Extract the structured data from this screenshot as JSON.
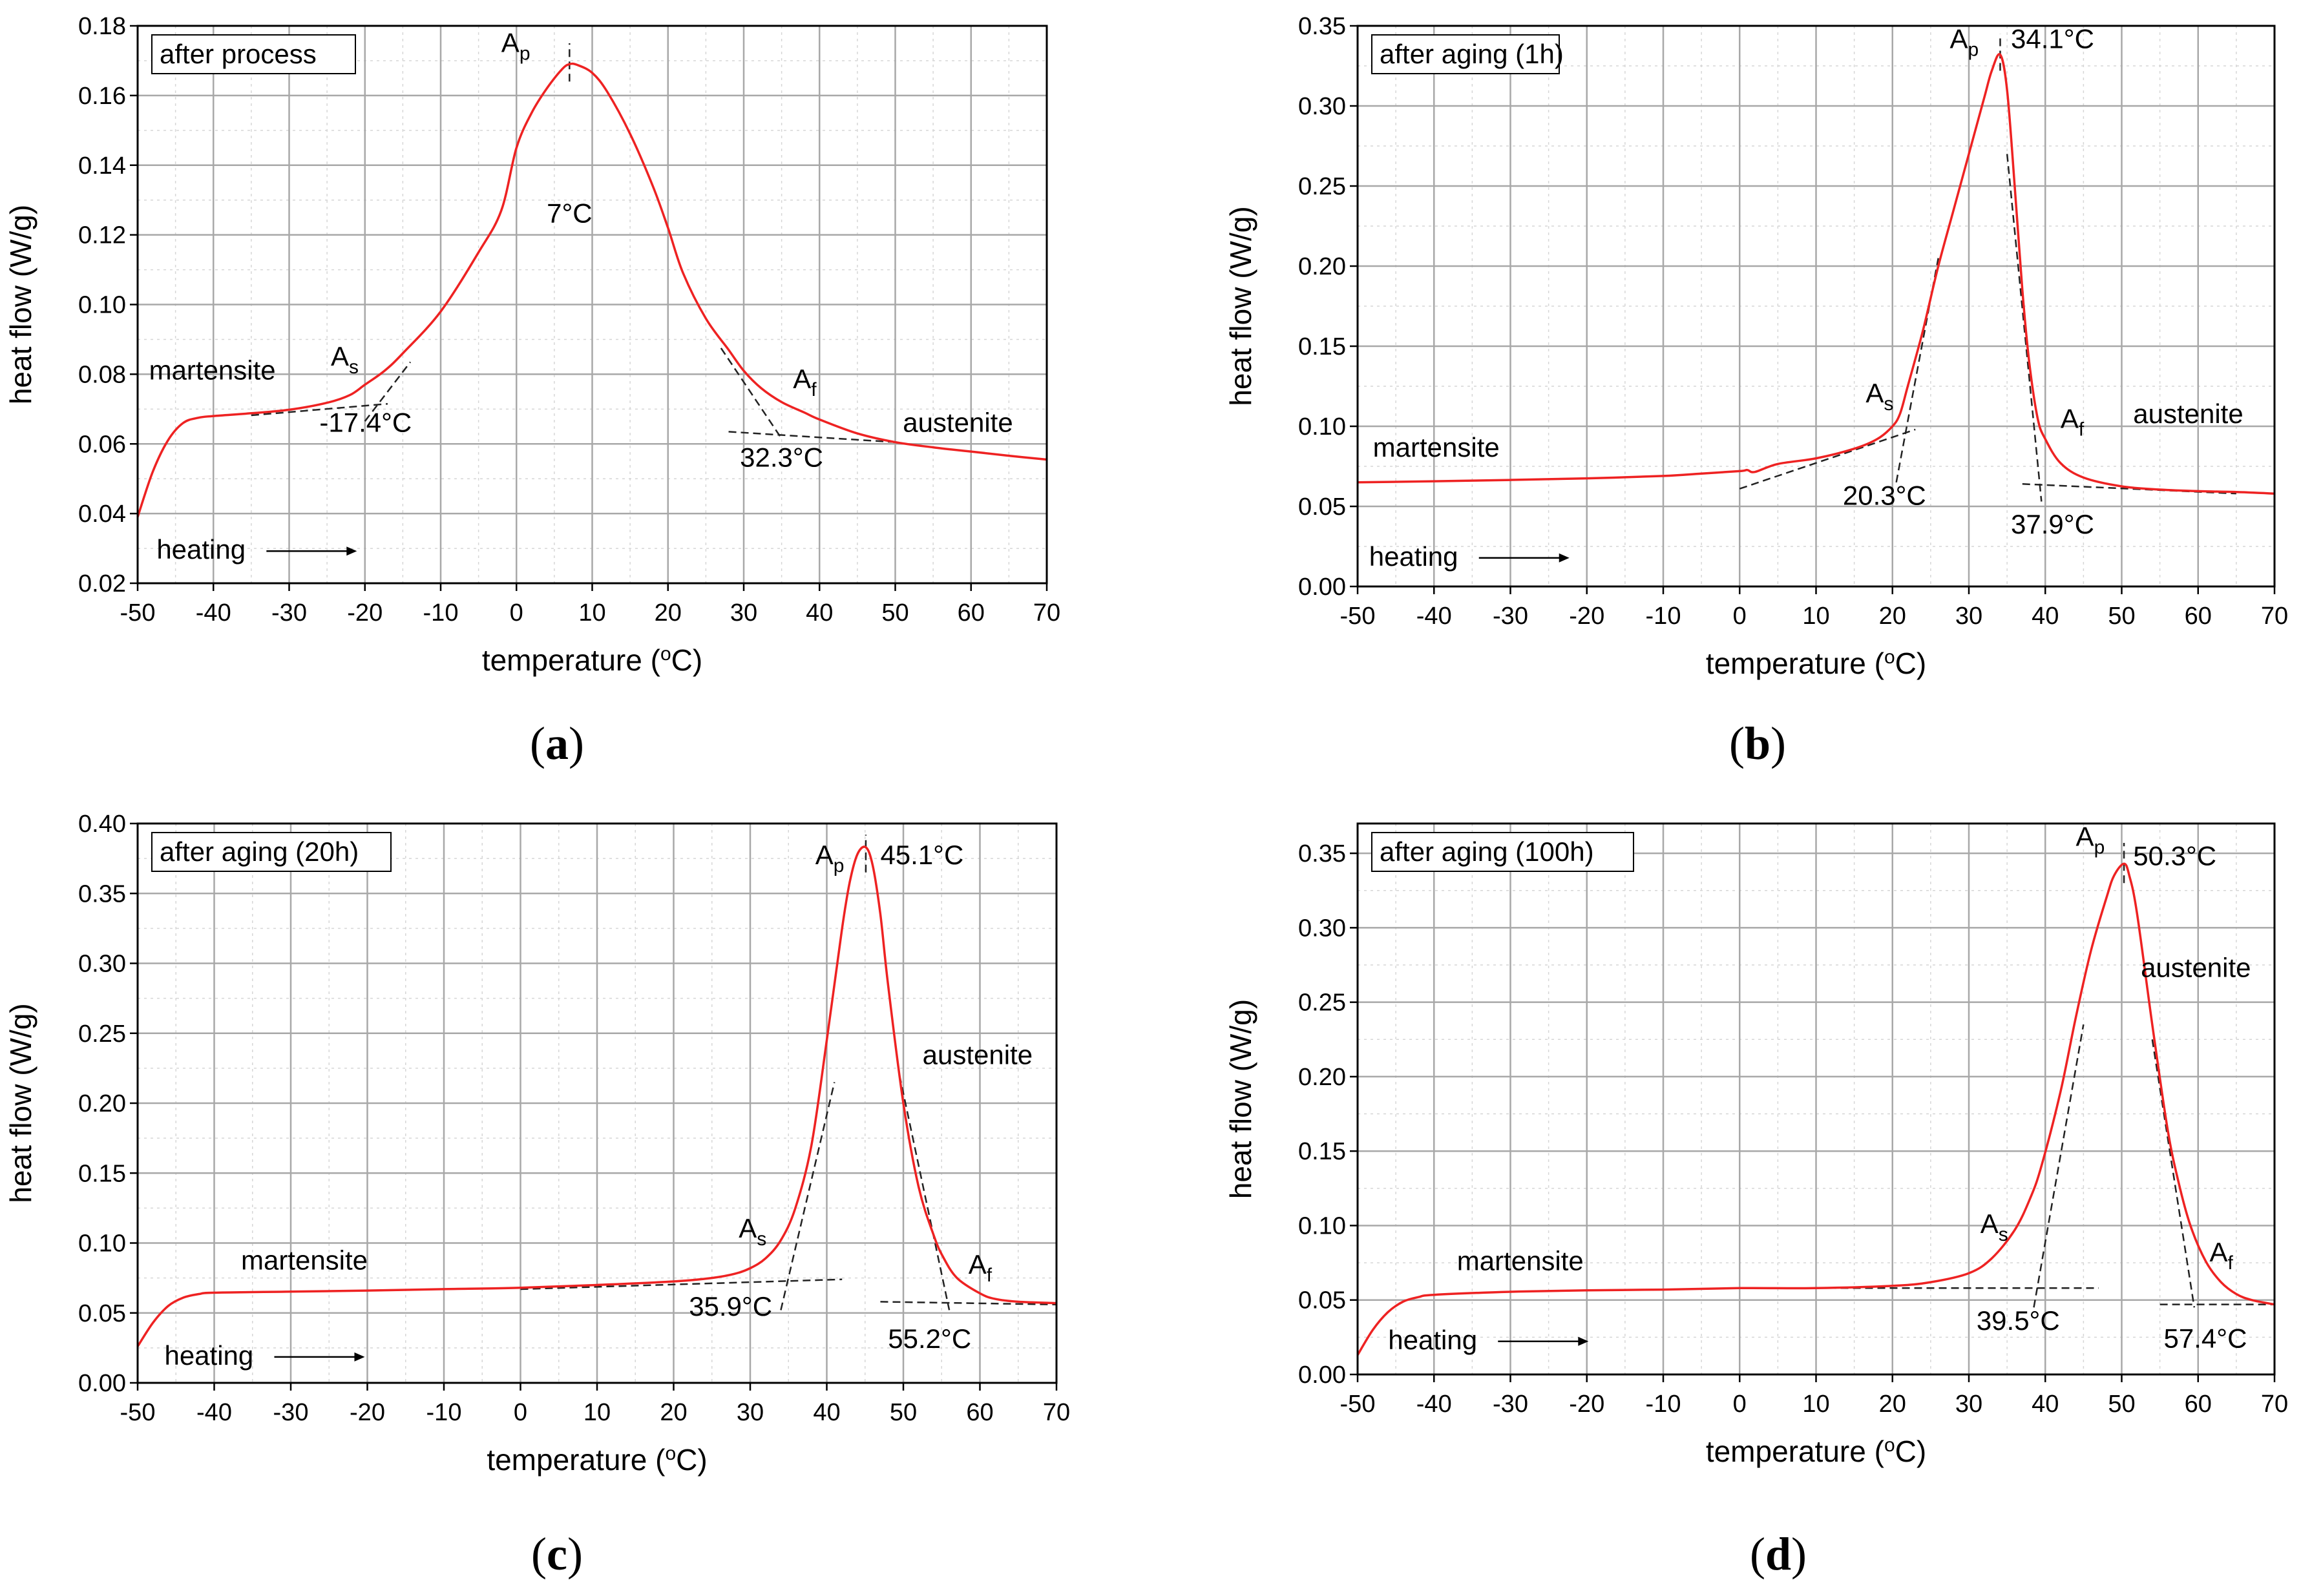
{
  "figure": {
    "panel_letters": [
      "a",
      "b",
      "c",
      "d"
    ]
  },
  "chart_data": [
    {
      "type": "line",
      "panel": "a",
      "title": "after process",
      "xlabel": "temperature",
      "xlabel_unit": "C",
      "ylabel": "heat flow (W/g)",
      "xlim": [
        -50,
        70
      ],
      "ylim": [
        0.02,
        0.18
      ],
      "xticks": [
        -50,
        -40,
        -30,
        -20,
        -10,
        0,
        10,
        20,
        30,
        40,
        50,
        60,
        70
      ],
      "yticks": [
        0.02,
        0.04,
        0.06,
        0.08,
        0.1,
        0.12,
        0.14,
        0.16,
        0.18
      ],
      "ytick_decimals": 2,
      "series": [
        {
          "name": "heat flow",
          "color": "#ee2222",
          "x": [
            -50,
            -48,
            -46,
            -44,
            -42,
            -40,
            -35,
            -30,
            -25,
            -22,
            -20,
            -17.4,
            -15,
            -10,
            -5,
            -2,
            0,
            2,
            4,
            6,
            7,
            8,
            10,
            12,
            15,
            18,
            20,
            22,
            25,
            28,
            30,
            32.3,
            35,
            38,
            40,
            45,
            50,
            55,
            60,
            65,
            70
          ],
          "y": [
            0.039,
            0.052,
            0.061,
            0.066,
            0.0675,
            0.068,
            0.0688,
            0.0698,
            0.0718,
            0.074,
            0.077,
            0.081,
            0.086,
            0.098,
            0.115,
            0.127,
            0.145,
            0.155,
            0.162,
            0.1675,
            0.169,
            0.1688,
            0.1665,
            0.161,
            0.149,
            0.134,
            0.122,
            0.109,
            0.096,
            0.087,
            0.081,
            0.076,
            0.072,
            0.069,
            0.067,
            0.063,
            0.0605,
            0.059,
            0.0578,
            0.0566,
            0.0555
          ]
        }
      ],
      "tangents": [
        {
          "x": [
            -35,
            -17
          ],
          "y": [
            0.0682,
            0.0715
          ]
        },
        {
          "x": [
            -20,
            -14
          ],
          "y": [
            0.0665,
            0.0835
          ]
        },
        {
          "x": [
            27,
            35
          ],
          "y": [
            0.0875,
            0.0615
          ]
        },
        {
          "x": [
            28,
            50
          ],
          "y": [
            0.0635,
            0.0605
          ]
        },
        {
          "x": [
            7,
            7
          ],
          "y": [
            0.164,
            0.175
          ]
        }
      ],
      "annotations": [
        {
          "text": "martensite",
          "x": -48.5,
          "y": 0.0785
        },
        {
          "text": "austenite",
          "x": 51,
          "y": 0.0635
        },
        {
          "text": "heating",
          "x": -47.5,
          "y": 0.027
        },
        {
          "text": "-17.4°C",
          "x": -26,
          "y": 0.0635
        },
        {
          "text": "32.3°C",
          "x": 29.5,
          "y": 0.0535
        },
        {
          "text": "7°C",
          "x": 4,
          "y": 0.1235
        },
        {
          "text": "A",
          "sub": "s",
          "x": -24.5,
          "y": 0.0825
        },
        {
          "text": "A",
          "sub": "p",
          "x": -2,
          "y": 0.1725
        },
        {
          "text": "A",
          "sub": "f",
          "x": 36.5,
          "y": 0.076
        }
      ]
    },
    {
      "type": "line",
      "panel": "b",
      "title": "after aging (1h)",
      "xlabel": "temperature",
      "xlabel_unit": "C",
      "ylabel": "heat flow (W/g)",
      "xlim": [
        -50,
        70
      ],
      "ylim": [
        0,
        0.35
      ],
      "xticks": [
        -50,
        -40,
        -30,
        -20,
        -10,
        0,
        10,
        20,
        30,
        40,
        50,
        60,
        70
      ],
      "yticks": [
        0.0,
        0.05,
        0.1,
        0.15,
        0.2,
        0.25,
        0.3,
        0.35
      ],
      "ytick_decimals": 2,
      "series": [
        {
          "name": "heat flow",
          "color": "#ee2222",
          "x": [
            -50,
            -40,
            -30,
            -20,
            -10,
            -5,
            0,
            1,
            2,
            5,
            10,
            15,
            18,
            20,
            21,
            22,
            24,
            26,
            28,
            30,
            32,
            33,
            34.1,
            35,
            36,
            37,
            37.9,
            39,
            40,
            42,
            45,
            50,
            55,
            60,
            65,
            70
          ],
          "y": [
            0.065,
            0.0657,
            0.0665,
            0.0675,
            0.069,
            0.0705,
            0.072,
            0.0727,
            0.0715,
            0.0765,
            0.08,
            0.086,
            0.092,
            0.1,
            0.108,
            0.125,
            0.16,
            0.2,
            0.235,
            0.27,
            0.305,
            0.322,
            0.332,
            0.31,
            0.25,
            0.185,
            0.14,
            0.105,
            0.092,
            0.077,
            0.068,
            0.0625,
            0.0605,
            0.0595,
            0.059,
            0.058
          ]
        }
      ],
      "tangents": [
        {
          "x": [
            0,
            23
          ],
          "y": [
            0.061,
            0.098
          ]
        },
        {
          "x": [
            20.5,
            26
          ],
          "y": [
            0.065,
            0.205
          ]
        },
        {
          "x": [
            35,
            39.5
          ],
          "y": [
            0.27,
            0.053
          ]
        },
        {
          "x": [
            37,
            65
          ],
          "y": [
            0.064,
            0.058
          ]
        },
        {
          "x": [
            34.1,
            34.1
          ],
          "y": [
            0.322,
            0.345
          ]
        }
      ],
      "annotations": [
        {
          "text": "martensite",
          "x": -48,
          "y": 0.081
        },
        {
          "text": "austenite",
          "x": 51.5,
          "y": 0.102
        },
        {
          "text": "heating",
          "x": -48.5,
          "y": 0.013
        },
        {
          "text": "20.3°C",
          "x": 13.5,
          "y": 0.051
        },
        {
          "text": "37.9°C",
          "x": 35.5,
          "y": 0.033
        },
        {
          "text": "34.1°C",
          "x": 35.5,
          "y": 0.336
        },
        {
          "text": "A",
          "sub": "s",
          "x": 16.5,
          "y": 0.115
        },
        {
          "text": "A",
          "sub": "p",
          "x": 27.5,
          "y": 0.336
        },
        {
          "text": "A",
          "sub": "f",
          "x": 42,
          "y": 0.099
        }
      ]
    },
    {
      "type": "line",
      "panel": "c",
      "title": "after aging (20h)",
      "xlabel": "temperature",
      "xlabel_unit": "C",
      "ylabel": "heat flow (W/g)",
      "xlim": [
        -50,
        70
      ],
      "ylim": [
        0,
        0.4
      ],
      "xticks": [
        -50,
        -40,
        -30,
        -20,
        -10,
        0,
        10,
        20,
        30,
        40,
        50,
        60,
        70
      ],
      "yticks": [
        0.0,
        0.05,
        0.1,
        0.15,
        0.2,
        0.25,
        0.3,
        0.35,
        0.4
      ],
      "ytick_decimals": 2,
      "series": [
        {
          "name": "heat flow",
          "color": "#ee2222",
          "x": [
            -50,
            -48,
            -46,
            -44,
            -42,
            -40,
            -30,
            -20,
            -10,
            0,
            10,
            20,
            25,
            28,
            30,
            32,
            34,
            35.9,
            38,
            40,
            42,
            43,
            44,
            45.1,
            46,
            47,
            48,
            50,
            52,
            54,
            55.2,
            57,
            60,
            62,
            65,
            70
          ],
          "y": [
            0.026,
            0.043,
            0.055,
            0.061,
            0.0635,
            0.0645,
            0.0652,
            0.066,
            0.067,
            0.068,
            0.07,
            0.0725,
            0.075,
            0.078,
            0.082,
            0.089,
            0.102,
            0.125,
            0.17,
            0.245,
            0.325,
            0.358,
            0.378,
            0.383,
            0.37,
            0.335,
            0.285,
            0.2,
            0.14,
            0.105,
            0.09,
            0.075,
            0.064,
            0.06,
            0.058,
            0.057
          ]
        }
      ],
      "tangents": [
        {
          "x": [
            0,
            42
          ],
          "y": [
            0.067,
            0.074
          ]
        },
        {
          "x": [
            34,
            41
          ],
          "y": [
            0.052,
            0.215
          ]
        },
        {
          "x": [
            49.5,
            56
          ],
          "y": [
            0.22,
            0.052
          ]
        },
        {
          "x": [
            47,
            70
          ],
          "y": [
            0.058,
            0.056
          ]
        },
        {
          "x": [
            45.1,
            45.1
          ],
          "y": [
            0.365,
            0.392
          ]
        }
      ],
      "annotations": [
        {
          "text": "martensite",
          "x": -36.5,
          "y": 0.081
        },
        {
          "text": "austenite",
          "x": 52.5,
          "y": 0.228
        },
        {
          "text": "heating",
          "x": -46.5,
          "y": 0.013
        },
        {
          "text": "35.9°C",
          "x": 22,
          "y": 0.048
        },
        {
          "text": "55.2°C",
          "x": 48,
          "y": 0.025
        },
        {
          "text": "45.1°C",
          "x": 47,
          "y": 0.371
        },
        {
          "text": "A",
          "sub": "s",
          "x": 28.5,
          "y": 0.104
        },
        {
          "text": "A",
          "sub": "p",
          "x": 38.5,
          "y": 0.371
        },
        {
          "text": "A",
          "sub": "f",
          "x": 58.5,
          "y": 0.078
        }
      ]
    },
    {
      "type": "line",
      "panel": "d",
      "title": "after aging (100h)",
      "xlabel": "temperature",
      "xlabel_unit": "C",
      "ylabel": "heat flow (W/g)",
      "xlim": [
        -50,
        70
      ],
      "ylim": [
        0,
        0.37
      ],
      "xticks": [
        -50,
        -40,
        -30,
        -20,
        -10,
        0,
        10,
        20,
        30,
        40,
        50,
        60,
        70
      ],
      "yticks": [
        0.0,
        0.05,
        0.1,
        0.15,
        0.2,
        0.25,
        0.3,
        0.35
      ],
      "ytick_decimals": 2,
      "series": [
        {
          "name": "heat flow",
          "color": "#ee2222",
          "x": [
            -50,
            -48,
            -46,
            -44,
            -42,
            -40,
            -30,
            -20,
            -10,
            0,
            10,
            20,
            25,
            30,
            33,
            36,
            38,
            39.5,
            42,
            44,
            46,
            48,
            49,
            50.3,
            51,
            52,
            54,
            56,
            57.4,
            59,
            61,
            63,
            65,
            67,
            70
          ],
          "y": [
            0.013,
            0.03,
            0.042,
            0.049,
            0.052,
            0.0535,
            0.0555,
            0.0565,
            0.057,
            0.058,
            0.058,
            0.0595,
            0.062,
            0.068,
            0.078,
            0.097,
            0.118,
            0.14,
            0.19,
            0.24,
            0.285,
            0.32,
            0.335,
            0.343,
            0.335,
            0.31,
            0.235,
            0.165,
            0.13,
            0.1,
            0.076,
            0.062,
            0.054,
            0.05,
            0.047
          ]
        }
      ],
      "tangents": [
        {
          "x": [
            10,
            47
          ],
          "y": [
            0.058,
            0.058
          ]
        },
        {
          "x": [
            38.5,
            45
          ],
          "y": [
            0.045,
            0.235
          ]
        },
        {
          "x": [
            54,
            59.5
          ],
          "y": [
            0.225,
            0.045
          ]
        },
        {
          "x": [
            55,
            70
          ],
          "y": [
            0.047,
            0.047
          ]
        },
        {
          "x": [
            50.3,
            50.3
          ],
          "y": [
            0.33,
            0.357
          ]
        }
      ],
      "annotations": [
        {
          "text": "martensite",
          "x": -37,
          "y": 0.07
        },
        {
          "text": "austenite",
          "x": 52.5,
          "y": 0.267
        },
        {
          "text": "heating",
          "x": -46,
          "y": 0.017
        },
        {
          "text": "39.5°C",
          "x": 31,
          "y": 0.03
        },
        {
          "text": "57.4°C",
          "x": 55.5,
          "y": 0.018
        },
        {
          "text": "50.3°C",
          "x": 51.5,
          "y": 0.342
        },
        {
          "text": "A",
          "sub": "s",
          "x": 31.5,
          "y": 0.095
        },
        {
          "text": "A",
          "sub": "p",
          "x": 44,
          "y": 0.355
        },
        {
          "text": "A",
          "sub": "f",
          "x": 61.5,
          "y": 0.076
        }
      ]
    }
  ]
}
